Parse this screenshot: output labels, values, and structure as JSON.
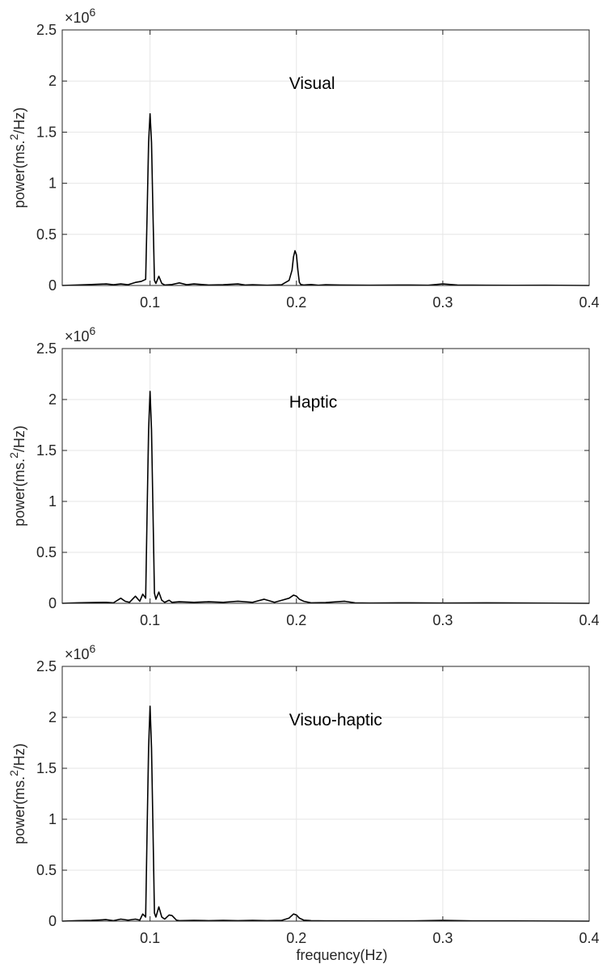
{
  "chart_data": [
    {
      "type": "line",
      "annotation": "Visual",
      "ylabel_main": "power(ms.",
      "ylabel_sup": "2",
      "ylabel_end": "/Hz)",
      "y_exponent_base": "×10",
      "y_exponent_power": "6",
      "xlim": [
        0.04,
        0.4
      ],
      "ylim": [
        0,
        2500000
      ],
      "grid": true,
      "x_ticks": [
        "0.1",
        "0.2",
        "0.3",
        "0.4"
      ],
      "x_tick_values": [
        0.1,
        0.2,
        0.3,
        0.4
      ],
      "y_ticks": [
        "0",
        "0.5",
        "1",
        "1.5",
        "2",
        "2.5"
      ],
      "y_tick_values": [
        0,
        500000,
        1000000,
        1500000,
        2000000,
        2500000
      ],
      "series": [
        {
          "x": [
            0.04,
            0.05,
            0.06,
            0.07,
            0.075,
            0.08,
            0.085,
            0.09,
            0.094,
            0.097,
            0.098,
            0.099,
            0.1,
            0.101,
            0.102,
            0.103,
            0.104,
            0.106,
            0.108,
            0.11,
            0.115,
            0.12,
            0.125,
            0.13,
            0.14,
            0.15,
            0.16,
            0.165,
            0.17,
            0.18,
            0.19,
            0.195,
            0.197,
            0.198,
            0.199,
            0.2,
            0.201,
            0.202,
            0.203,
            0.205,
            0.21,
            0.215,
            0.22,
            0.23,
            0.25,
            0.27,
            0.29,
            0.3,
            0.31,
            0.33,
            0.35,
            0.37,
            0.4
          ],
          "y": [
            0,
            5000,
            10000,
            15000,
            8000,
            15000,
            8000,
            30000,
            40000,
            60000,
            700000,
            1400000,
            1680000,
            1400000,
            700000,
            50000,
            20000,
            90000,
            20000,
            5000,
            10000,
            25000,
            8000,
            15000,
            5000,
            8000,
            15000,
            5000,
            8000,
            3000,
            8000,
            50000,
            150000,
            280000,
            340000,
            300000,
            150000,
            30000,
            10000,
            5000,
            10000,
            3000,
            8000,
            5000,
            3000,
            5000,
            3000,
            15000,
            5000,
            3000,
            2000,
            3000,
            0
          ]
        }
      ]
    },
    {
      "type": "line",
      "annotation": "Haptic",
      "ylabel_main": "power(ms.",
      "ylabel_sup": "2",
      "ylabel_end": "/Hz)",
      "y_exponent_base": "×10",
      "y_exponent_power": "6",
      "xlim": [
        0.04,
        0.4
      ],
      "ylim": [
        0,
        2500000
      ],
      "grid": true,
      "x_ticks": [
        "0.1",
        "0.2",
        "0.3",
        "0.4"
      ],
      "x_tick_values": [
        0.1,
        0.2,
        0.3,
        0.4
      ],
      "y_ticks": [
        "0",
        "0.5",
        "1",
        "1.5",
        "2",
        "2.5"
      ],
      "y_tick_values": [
        0,
        500000,
        1000000,
        1500000,
        2000000,
        2500000
      ],
      "series": [
        {
          "x": [
            0.04,
            0.05,
            0.06,
            0.07,
            0.075,
            0.08,
            0.083,
            0.086,
            0.09,
            0.093,
            0.095,
            0.097,
            0.098,
            0.099,
            0.1,
            0.101,
            0.102,
            0.103,
            0.104,
            0.106,
            0.108,
            0.11,
            0.113,
            0.115,
            0.12,
            0.13,
            0.14,
            0.15,
            0.16,
            0.17,
            0.178,
            0.185,
            0.19,
            0.195,
            0.198,
            0.2,
            0.202,
            0.205,
            0.21,
            0.22,
            0.233,
            0.24,
            0.25,
            0.27,
            0.3,
            0.33,
            0.36,
            0.4
          ],
          "y": [
            0,
            5000,
            8000,
            10000,
            5000,
            50000,
            20000,
            10000,
            70000,
            20000,
            90000,
            50000,
            900000,
            1700000,
            2080000,
            1700000,
            900000,
            100000,
            40000,
            110000,
            30000,
            10000,
            30000,
            10000,
            15000,
            10000,
            15000,
            10000,
            20000,
            10000,
            40000,
            10000,
            30000,
            50000,
            80000,
            70000,
            40000,
            20000,
            5000,
            8000,
            20000,
            5000,
            3000,
            5000,
            3000,
            5000,
            3000,
            0
          ]
        }
      ]
    },
    {
      "type": "line",
      "annotation": "Visuo-haptic",
      "ylabel_main": "power(ms.",
      "ylabel_sup": "2",
      "ylabel_end": "/Hz)",
      "y_exponent_base": "×10",
      "y_exponent_power": "6",
      "xlabel": "frequency(Hz)",
      "xlim": [
        0.04,
        0.4
      ],
      "ylim": [
        0,
        2500000
      ],
      "grid": true,
      "x_ticks": [
        "0.1",
        "0.2",
        "0.3",
        "0.4"
      ],
      "x_tick_values": [
        0.1,
        0.2,
        0.3,
        0.4
      ],
      "y_ticks": [
        "0",
        "0.5",
        "1",
        "1.5",
        "2",
        "2.5"
      ],
      "y_tick_values": [
        0,
        500000,
        1000000,
        1500000,
        2000000,
        2500000
      ],
      "series": [
        {
          "x": [
            0.04,
            0.05,
            0.06,
            0.07,
            0.075,
            0.08,
            0.085,
            0.09,
            0.093,
            0.095,
            0.097,
            0.098,
            0.099,
            0.1,
            0.101,
            0.102,
            0.103,
            0.104,
            0.106,
            0.108,
            0.11,
            0.113,
            0.115,
            0.118,
            0.12,
            0.13,
            0.14,
            0.15,
            0.16,
            0.17,
            0.18,
            0.19,
            0.195,
            0.198,
            0.2,
            0.202,
            0.205,
            0.21,
            0.22,
            0.25,
            0.28,
            0.3,
            0.32,
            0.36,
            0.4
          ],
          "y": [
            0,
            5000,
            8000,
            15000,
            5000,
            20000,
            10000,
            20000,
            10000,
            70000,
            40000,
            900000,
            1700000,
            2110000,
            1700000,
            900000,
            80000,
            40000,
            140000,
            40000,
            20000,
            60000,
            55000,
            10000,
            5000,
            8000,
            5000,
            8000,
            5000,
            8000,
            5000,
            8000,
            30000,
            70000,
            60000,
            30000,
            10000,
            5000,
            3000,
            2000,
            3000,
            8000,
            3000,
            2000,
            0
          ]
        }
      ]
    }
  ]
}
